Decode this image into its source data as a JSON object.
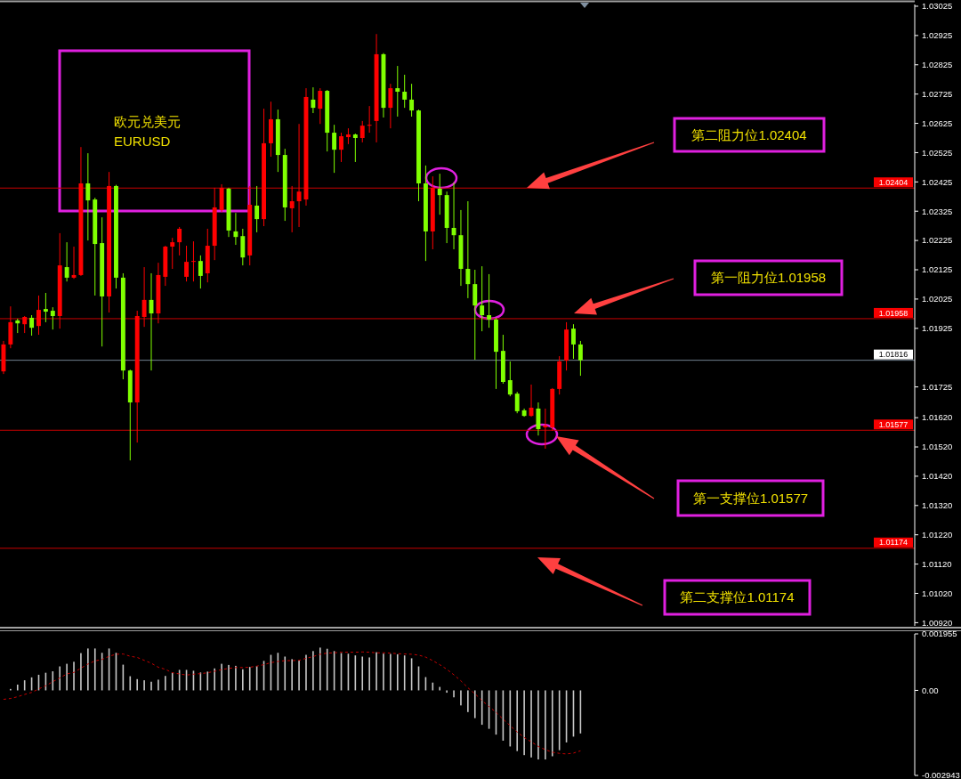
{
  "chart_data": [
    {
      "type": "candlestick",
      "categories": [
        null,
        null,
        null,
        null,
        null,
        null,
        null,
        null,
        null,
        null,
        null,
        null,
        null,
        null,
        null,
        null,
        null,
        null,
        null,
        null,
        null,
        null,
        null,
        null,
        null,
        null,
        null,
        null,
        null,
        null,
        null,
        null,
        null,
        null,
        null,
        null,
        null,
        null,
        null,
        null,
        null,
        null,
        null,
        null,
        null,
        null,
        null,
        null,
        null,
        null,
        null,
        null,
        null,
        null,
        null,
        null,
        null,
        null,
        null,
        null,
        null,
        null,
        null,
        null,
        null,
        null,
        null,
        null,
        null,
        null,
        null,
        null,
        null,
        null,
        null,
        null,
        null,
        null,
        null,
        null,
        null,
        null,
        null,
        null,
        null,
        null,
        null,
        null,
        null,
        null,
        null,
        null,
        null,
        null,
        null,
        null,
        null,
        null,
        null,
        null,
        null,
        null,
        null,
        null,
        null,
        null,
        null,
        null,
        null,
        null,
        null,
        null,
        null,
        null,
        null,
        null,
        null,
        null,
        null,
        null,
        null,
        null,
        null,
        null,
        null,
        null,
        null,
        null,
        null,
        null
      ],
      "ohlc": [
        [
          1.01778,
          1.01882,
          1.01769,
          1.0187
        ],
        [
          1.0187,
          1.02,
          1.01857,
          1.01946
        ],
        [
          1.01952,
          1.01958,
          1.01909,
          1.01942
        ],
        [
          1.01939,
          1.01967,
          1.01909,
          1.01964
        ],
        [
          1.01961,
          1.0197,
          1.019,
          1.01927
        ],
        [
          1.01933,
          1.02037,
          1.01903,
          1.01988
        ],
        [
          1.01991,
          1.02046,
          1.01946,
          1.01982
        ],
        [
          1.01985,
          1.01997,
          1.01921,
          1.01967
        ],
        [
          1.01967,
          1.0225,
          1.01924,
          1.0214
        ],
        [
          1.02134,
          1.02219,
          1.02085,
          1.02098
        ],
        [
          1.02098,
          1.02204,
          1.02094,
          1.02107
        ],
        [
          1.02107,
          1.02544,
          1.02104,
          1.0242
        ],
        [
          1.0242,
          1.02523,
          1.02225,
          1.02362
        ],
        [
          1.02365,
          1.02371,
          1.02037,
          1.02213
        ],
        [
          1.02216,
          1.02304,
          1.01863,
          1.02034
        ],
        [
          1.02034,
          1.02459,
          1.01979,
          1.02411
        ],
        [
          1.02411,
          1.02415,
          1.02061,
          1.02098
        ],
        [
          1.02098,
          1.02113,
          1.01751,
          1.01781
        ],
        [
          1.01781,
          1.01784,
          1.01474,
          1.01672
        ],
        [
          1.01672,
          1.01985,
          1.01535,
          1.01967
        ],
        [
          1.01964,
          1.02134,
          1.0193,
          1.02022
        ],
        [
          1.02022,
          1.02113,
          1.01781,
          1.01976
        ],
        [
          1.01976,
          1.02149,
          1.01942,
          1.02107
        ],
        [
          1.02101,
          1.02207,
          1.0207,
          1.02204
        ],
        [
          1.02204,
          1.02234,
          1.02128,
          1.02219
        ],
        [
          1.02219,
          1.02271,
          1.02174,
          1.02265
        ],
        [
          1.02101,
          1.02207,
          1.02085,
          1.02152
        ],
        [
          1.02152,
          1.02222,
          1.02085,
          1.02155
        ],
        [
          1.02155,
          1.02174,
          1.02061,
          1.02104
        ],
        [
          1.02113,
          1.02265,
          1.02082,
          1.02207
        ],
        [
          1.02207,
          1.02405,
          1.02158,
          1.02338
        ],
        [
          1.02329,
          1.02417,
          1.02322,
          1.02405
        ],
        [
          1.02402,
          1.02405,
          1.02237,
          1.02259
        ],
        [
          1.02256,
          1.02319,
          1.0221,
          1.02237
        ],
        [
          1.0224,
          1.02265,
          1.0214,
          1.02167
        ],
        [
          1.02174,
          1.02411,
          1.0214,
          1.02347
        ],
        [
          1.02344,
          1.02411,
          1.02253,
          1.02298
        ],
        [
          1.02298,
          1.02675,
          1.02274,
          1.02557
        ],
        [
          1.02557,
          1.02699,
          1.02511,
          1.02639
        ],
        [
          1.02639,
          1.02672,
          1.02459,
          1.02517
        ],
        [
          1.02517,
          1.02538,
          1.02292,
          1.02338
        ],
        [
          1.02335,
          1.02411,
          1.02253,
          1.02359
        ],
        [
          1.02359,
          1.02623,
          1.02271,
          1.02392
        ],
        [
          1.02365,
          1.02745,
          1.02344,
          1.02715
        ],
        [
          1.02706,
          1.02748,
          1.0266,
          1.02678
        ],
        [
          1.02675,
          1.02745,
          1.02623,
          1.02736
        ],
        [
          1.02736,
          1.02739,
          1.02529,
          1.02593
        ],
        [
          1.02593,
          1.0262,
          1.02456,
          1.02535
        ],
        [
          1.02535,
          1.02593,
          1.02493,
          1.02581
        ],
        [
          1.02578,
          1.02608,
          1.02554,
          1.02587
        ],
        [
          1.02587,
          1.0259,
          1.02493,
          1.02575
        ],
        [
          1.02575,
          1.02633,
          1.0256,
          1.02617
        ],
        [
          1.02617,
          1.02684,
          1.02593,
          1.0262
        ],
        [
          1.02633,
          1.0293,
          1.0256,
          1.02861
        ],
        [
          1.02861,
          1.02865,
          1.02645,
          1.02678
        ],
        [
          1.02678,
          1.0276,
          1.02608,
          1.02745
        ],
        [
          1.02745,
          1.02821,
          1.02648,
          1.02733
        ],
        [
          1.02733,
          1.02791,
          1.02678,
          1.02706
        ],
        [
          1.02706,
          1.0276,
          1.02648,
          1.02669
        ],
        [
          1.02669,
          1.02672,
          1.02359,
          1.0242
        ],
        [
          1.0242,
          1.02481,
          1.02155,
          1.02256
        ],
        [
          1.02256,
          1.02444,
          1.02195,
          1.02405
        ],
        [
          1.02402,
          1.02453,
          1.02313,
          1.0238
        ],
        [
          1.0238,
          1.02392,
          1.02216,
          1.02268
        ],
        [
          1.02268,
          1.02423,
          1.02195,
          1.02243
        ],
        [
          1.02243,
          1.02329,
          1.0207,
          1.02128
        ],
        [
          1.02128,
          1.02359,
          1.02028,
          1.02076
        ],
        [
          1.02076,
          1.02125,
          1.01818,
          1.02003
        ],
        [
          1.02003,
          1.02137,
          1.01915,
          1.0197
        ],
        [
          1.0197,
          1.0211,
          1.01927,
          1.01955
        ],
        [
          1.01955,
          1.01961,
          1.01718,
          1.01845
        ],
        [
          1.01848,
          1.01903,
          1.01736,
          1.01742
        ],
        [
          1.01748,
          1.01812,
          1.01693,
          1.01699
        ],
        [
          1.01702,
          1.01708,
          1.01635,
          1.01642
        ],
        [
          1.01645,
          1.01651,
          1.01623,
          1.01626
        ],
        [
          1.01626,
          1.01733,
          1.01623,
          1.01654
        ],
        [
          1.01651,
          1.01672,
          1.01559,
          1.01581
        ],
        [
          1.01587,
          1.01651,
          1.01514,
          1.01593
        ],
        [
          1.01587,
          1.01721,
          1.01575,
          1.01718
        ],
        [
          1.01718,
          1.0183,
          1.01699,
          1.01812
        ],
        [
          1.01815,
          1.01946,
          1.01781,
          1.01921
        ],
        [
          1.01924,
          1.01939,
          1.01821,
          1.0187
        ],
        [
          1.0187,
          1.01882,
          1.01763,
          1.01816
        ],
        null,
        null,
        null,
        null,
        null,
        null,
        null,
        null,
        null,
        null,
        null,
        null,
        null,
        null,
        null,
        null,
        null,
        null,
        null,
        null,
        null,
        null,
        null,
        null,
        null,
        null,
        null,
        null,
        null,
        null,
        null,
        null,
        null,
        null,
        null,
        null,
        null,
        null,
        null,
        null,
        null,
        null,
        null,
        null,
        null,
        null,
        null
      ],
      "ylim": [
        1.00909,
        1.03031
      ],
      "yticks": [
        1.03025,
        1.02925,
        1.02825,
        1.02725,
        1.02625,
        1.02525,
        1.02425,
        1.02325,
        1.02225,
        1.02125,
        1.02025,
        1.01925,
        1.01725,
        {
          "value": 1.0162,
          "label": "1.01620"
        },
        {
          "value": 1.0152,
          "label": "1.01520"
        },
        {
          "value": 1.0142,
          "label": "1.01420"
        },
        {
          "value": 1.0132,
          "label": "1.01320"
        },
        {
          "value": 1.0122,
          "label": "1.01220"
        },
        {
          "value": 1.0112,
          "label": "1.01120"
        },
        {
          "value": 1.0102,
          "label": "1.01020"
        },
        {
          "value": 1.0092,
          "label": "1.00920"
        }
      ],
      "tick_labels": "y",
      "ref_lines": [
        {
          "axis": "y",
          "value": 1.02404,
          "label": "1.02404",
          "color": "#c80000"
        },
        {
          "axis": "y",
          "value": 1.01958,
          "label": "1.01958",
          "color": "#c80000"
        },
        {
          "axis": "y",
          "value": 1.01816,
          "label": "1.01816",
          "color": "#708090"
        },
        {
          "axis": "y",
          "value": 1.01577,
          "label": "1.01577",
          "color": "#c80000"
        },
        {
          "axis": "y",
          "value": 1.01174,
          "label": "1.01174",
          "color": "#c80000"
        }
      ],
      "annotations": [
        "欧元兑美元",
        "EURUSD",
        "第二阻力位1.02404",
        "第一阻力位1.01958",
        "第一支撑位1.01577",
        "第二支撑位1.01174"
      ]
    },
    {
      "type": "bar",
      "categories": [
        null,
        null,
        null,
        null,
        null,
        null,
        null,
        null,
        null,
        null,
        null,
        null,
        null,
        null,
        null,
        null,
        null,
        null,
        null,
        null,
        null,
        null,
        null,
        null,
        null,
        null,
        null,
        null,
        null,
        null,
        null,
        null,
        null,
        null,
        null,
        null,
        null,
        null,
        null,
        null,
        null,
        null,
        null,
        null,
        null,
        null,
        null,
        null,
        null,
        null,
        null,
        null,
        null,
        null,
        null,
        null,
        null,
        null,
        null,
        null,
        null,
        null,
        null,
        null,
        null,
        null,
        null,
        null,
        null,
        null,
        null,
        null,
        null,
        null,
        null,
        null,
        null,
        null,
        null,
        null,
        null,
        null,
        null,
        null,
        null,
        null,
        null,
        null,
        null,
        null,
        null,
        null,
        null,
        null,
        null,
        null,
        null,
        null,
        null,
        null,
        null,
        null,
        null,
        null,
        null,
        null,
        null,
        null,
        null,
        null,
        null,
        null,
        null,
        null,
        null,
        null,
        null,
        null,
        null,
        null,
        null,
        null,
        null,
        null,
        null,
        null,
        null,
        null,
        null,
        null
      ],
      "series": [
        {
          "color": "#c8c8c8",
          "values": [
            null,
            5e-05,
            0.0002,
            0.00035,
            0.00045,
            0.00054,
            0.00061,
            0.00066,
            0.00083,
            0.00092,
            0.00099,
            0.00129,
            0.00145,
            0.00145,
            0.0013,
            0.00145,
            0.0013,
            0.00089,
            0.00049,
            0.00039,
            0.00035,
            0.0003,
            0.00037,
            0.0005,
            0.00061,
            0.00071,
            0.00071,
            0.00068,
            0.00062,
            0.00065,
            0.00076,
            0.00092,
            0.00088,
            0.00085,
            0.00073,
            0.00081,
            0.00084,
            0.00102,
            0.00123,
            0.0013,
            0.00117,
            0.00108,
            0.00103,
            0.00123,
            0.00136,
            0.00148,
            0.00144,
            0.00136,
            0.00129,
            0.00127,
            0.00121,
            0.00117,
            0.00114,
            0.00132,
            0.00127,
            0.00126,
            0.00125,
            0.00121,
            0.00111,
            0.00083,
            0.00046,
            0.00027,
            0.00012,
            -8e-05,
            -0.00024,
            -0.00052,
            -0.00075,
            -0.00096,
            -0.00119,
            -0.00133,
            -0.00153,
            -0.00174,
            -0.00194,
            -0.0021,
            -0.00224,
            -0.00232,
            -0.00239,
            -0.00239,
            -0.00228,
            -0.00207,
            -0.0018,
            -0.0016,
            -0.00149,
            null,
            null,
            null,
            null,
            null,
            null,
            null,
            null,
            null,
            null,
            null,
            null,
            null,
            null,
            null,
            null,
            null,
            null,
            null,
            null,
            null,
            null,
            null,
            null,
            null,
            null,
            null,
            null,
            null,
            null,
            null,
            null,
            null,
            null,
            null,
            null,
            null,
            null,
            null,
            null,
            null,
            null,
            null,
            null,
            null,
            null,
            null
          ]
        },
        {
          "type": "line",
          "color": "#c80000",
          "line_style": "dashed",
          "values": [
            -0.00031,
            -0.00028,
            -0.00022,
            -0.00014,
            -7e-05,
            5e-05,
            0.00016,
            0.0003,
            0.00043,
            0.00057,
            0.00062,
            0.00077,
            0.00091,
            0.00102,
            0.00107,
            0.00118,
            0.00125,
            0.00126,
            0.00118,
            0.00114,
            0.00104,
            0.00094,
            0.0008,
            0.00073,
            0.00061,
            0.00057,
            0.00053,
            0.00056,
            0.00058,
            0.00061,
            0.00066,
            0.00072,
            0.00076,
            0.00079,
            0.00079,
            0.0008,
            0.00084,
            0.00089,
            0.00096,
            0.001,
            0.00103,
            0.00103,
            0.00104,
            0.00111,
            0.00117,
            0.00125,
            0.00129,
            0.0013,
            0.00132,
            0.00132,
            0.00132,
            0.00133,
            0.00132,
            0.0013,
            0.0013,
            0.00129,
            0.00127,
            0.00126,
            0.00125,
            0.00122,
            0.00115,
            0.00103,
            0.00089,
            0.00073,
            0.00054,
            0.00033,
            9e-05,
            -0.00012,
            -0.00035,
            -0.00056,
            -0.00076,
            -0.001,
            -0.00122,
            -0.00144,
            -0.00163,
            -0.00178,
            -0.00194,
            -0.00205,
            -0.00214,
            -0.00218,
            -0.0022,
            -0.00217,
            -0.00209,
            null,
            null,
            null,
            null,
            null,
            null,
            null,
            null,
            null,
            null,
            null,
            null,
            null,
            null,
            null,
            null,
            null,
            null,
            null,
            null,
            null,
            null,
            null,
            null,
            null,
            null,
            null,
            null,
            null,
            null,
            null,
            null,
            null,
            null,
            null,
            null,
            null,
            null,
            null,
            null,
            null,
            null,
            null,
            null,
            null,
            null,
            null
          ]
        }
      ],
      "ylim": [
        -0.002943,
        0.001955
      ],
      "yticks": [
        0.001955,
        {
          "value": 0,
          "label": "0.00"
        },
        -0.002943
      ],
      "tick_labels": "y"
    }
  ]
}
